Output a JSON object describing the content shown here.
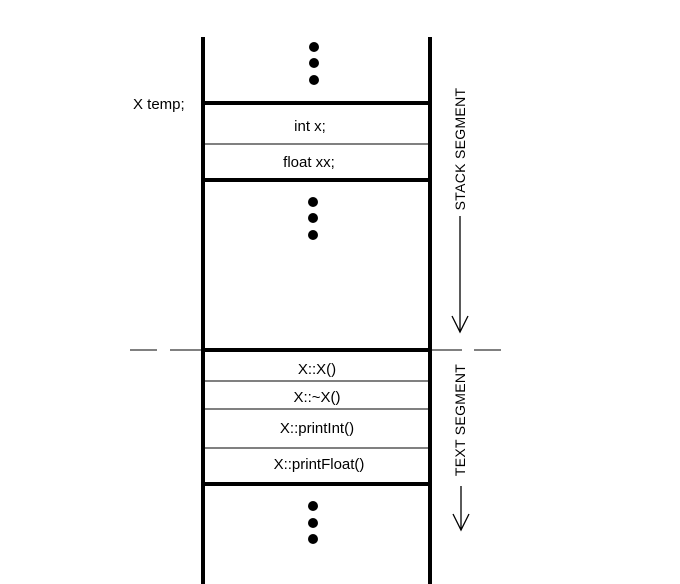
{
  "variable_label": "X temp;",
  "stack_cells": [
    "int x;",
    "float xx;"
  ],
  "text_cells": [
    "X::X()",
    "X::~X()",
    "X::printInt()",
    "X::printFloat()"
  ],
  "segments": {
    "stack": "STACK SEGMENT",
    "text": "TEXT SEGMENT"
  },
  "colors": {
    "line": "#000000",
    "background": "#ffffff"
  }
}
